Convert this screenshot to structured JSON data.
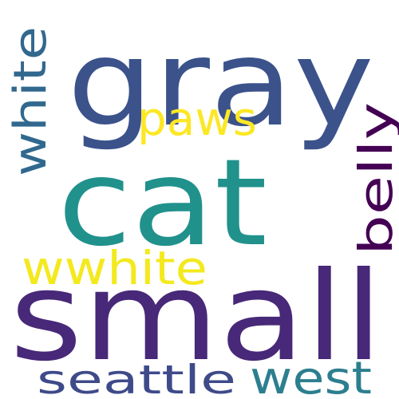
{
  "words": [
    {
      "text": "gray",
      "color": "#3b528b",
      "orientation": "horizontal"
    },
    {
      "text": "cat",
      "color": "#21918c",
      "orientation": "horizontal"
    },
    {
      "text": "small",
      "color": "#482878",
      "orientation": "horizontal"
    },
    {
      "text": "white",
      "color": "#31688e",
      "orientation": "vertical"
    },
    {
      "text": "paws",
      "color": "#fde725",
      "orientation": "horizontal"
    },
    {
      "text": "belly",
      "color": "#440154",
      "orientation": "vertical"
    },
    {
      "text": "wwhite",
      "color": "#f3e91e",
      "orientation": "horizontal"
    },
    {
      "text": "seattle",
      "color": "#3e4a89",
      "orientation": "horizontal"
    },
    {
      "text": "west",
      "color": "#2c7f8e",
      "orientation": "horizontal"
    }
  ]
}
